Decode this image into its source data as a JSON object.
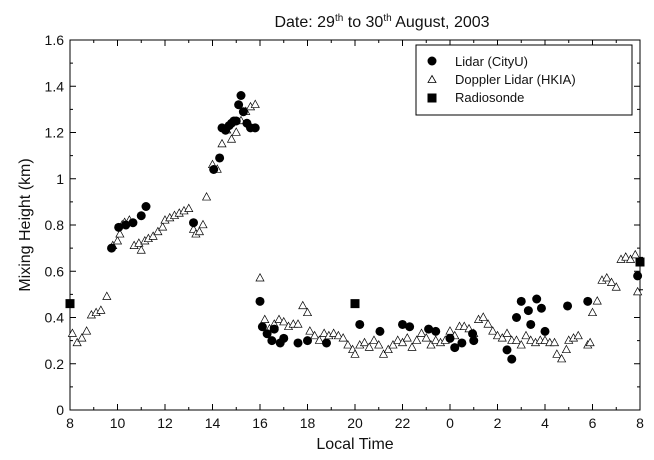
{
  "chart_data": {
    "type": "scatter",
    "title_parts": [
      "Date: 29",
      "th",
      " to 30",
      "th",
      " August, 2003"
    ],
    "xlabel": "Local Time",
    "ylabel": "Mixing Height (km)",
    "x_ticks": [
      "8",
      "10",
      "12",
      "14",
      "16",
      "18",
      "20",
      "22",
      "0",
      "2",
      "4",
      "6",
      "8"
    ],
    "y_ticks": [
      "0",
      "0.2",
      "0.4",
      "0.6",
      "0.8",
      "1",
      "1.2",
      "1.4",
      "1.6"
    ],
    "xlim": [
      8,
      32
    ],
    "ylim": [
      0,
      1.6
    ],
    "grid": false,
    "legend_position": "top-right",
    "x_note": "x values are elapsed hours on the clock starting at 08:00 on 29 August (values above 24 are the next day, ticks shown as 0, 2, 4, 6, 8)",
    "series": [
      {
        "name": "Lidar (CityU)",
        "marker": "filled-circle",
        "points": [
          [
            9.75,
            0.7
          ],
          [
            10.05,
            0.79
          ],
          [
            10.35,
            0.8
          ],
          [
            10.65,
            0.81
          ],
          [
            11.0,
            0.84
          ],
          [
            11.2,
            0.88
          ],
          [
            13.2,
            0.81
          ],
          [
            14.05,
            1.04
          ],
          [
            14.3,
            1.09
          ],
          [
            14.4,
            1.22
          ],
          [
            14.55,
            1.21
          ],
          [
            14.7,
            1.23
          ],
          [
            14.8,
            1.24
          ],
          [
            14.9,
            1.25
          ],
          [
            15.0,
            1.25
          ],
          [
            15.1,
            1.32
          ],
          [
            15.2,
            1.36
          ],
          [
            15.3,
            1.29
          ],
          [
            15.45,
            1.24
          ],
          [
            15.6,
            1.22
          ],
          [
            15.8,
            1.22
          ],
          [
            16.0,
            0.47
          ],
          [
            16.1,
            0.36
          ],
          [
            16.3,
            0.33
          ],
          [
            16.5,
            0.3
          ],
          [
            16.6,
            0.35
          ],
          [
            16.85,
            0.29
          ],
          [
            17.0,
            0.31
          ],
          [
            17.6,
            0.29
          ],
          [
            18.0,
            0.3
          ],
          [
            18.8,
            0.29
          ],
          [
            20.2,
            0.37
          ],
          [
            21.05,
            0.34
          ],
          [
            22.0,
            0.37
          ],
          [
            22.3,
            0.36
          ],
          [
            23.1,
            0.35
          ],
          [
            23.4,
            0.34
          ],
          [
            24.0,
            0.31
          ],
          [
            24.2,
            0.27
          ],
          [
            24.5,
            0.29
          ],
          [
            24.95,
            0.33
          ],
          [
            25.0,
            0.3
          ],
          [
            26.4,
            0.26
          ],
          [
            26.6,
            0.22
          ],
          [
            26.8,
            0.4
          ],
          [
            27.0,
            0.47
          ],
          [
            27.3,
            0.43
          ],
          [
            27.4,
            0.37
          ],
          [
            27.65,
            0.48
          ],
          [
            27.85,
            0.44
          ],
          [
            28.0,
            0.34
          ],
          [
            28.95,
            0.45
          ],
          [
            29.8,
            0.47
          ],
          [
            31.9,
            0.58
          ]
        ]
      },
      {
        "name": "Doppler Lidar (HKIA)",
        "marker": "open-triangle",
        "points": [
          [
            8.1,
            0.33
          ],
          [
            8.3,
            0.29
          ],
          [
            8.5,
            0.31
          ],
          [
            8.7,
            0.34
          ],
          [
            8.9,
            0.41
          ],
          [
            9.1,
            0.42
          ],
          [
            9.3,
            0.43
          ],
          [
            9.55,
            0.49
          ],
          [
            9.8,
            0.71
          ],
          [
            10.0,
            0.73
          ],
          [
            10.1,
            0.76
          ],
          [
            10.2,
            0.8
          ],
          [
            10.3,
            0.81
          ],
          [
            10.5,
            0.82
          ],
          [
            10.7,
            0.71
          ],
          [
            10.9,
            0.72
          ],
          [
            11.0,
            0.69
          ],
          [
            11.15,
            0.73
          ],
          [
            11.3,
            0.74
          ],
          [
            11.5,
            0.75
          ],
          [
            11.7,
            0.77
          ],
          [
            11.9,
            0.79
          ],
          [
            12.0,
            0.82
          ],
          [
            12.2,
            0.83
          ],
          [
            12.4,
            0.84
          ],
          [
            12.6,
            0.85
          ],
          [
            12.8,
            0.86
          ],
          [
            13.0,
            0.87
          ],
          [
            13.2,
            0.78
          ],
          [
            13.3,
            0.76
          ],
          [
            13.45,
            0.77
          ],
          [
            13.6,
            0.8
          ],
          [
            13.75,
            0.92
          ],
          [
            14.0,
            1.06
          ],
          [
            14.2,
            1.04
          ],
          [
            14.4,
            1.15
          ],
          [
            14.6,
            1.21
          ],
          [
            14.8,
            1.17
          ],
          [
            15.0,
            1.2
          ],
          [
            15.2,
            1.25
          ],
          [
            15.4,
            1.29
          ],
          [
            15.6,
            1.31
          ],
          [
            15.8,
            1.32
          ],
          [
            16.0,
            0.57
          ],
          [
            16.2,
            0.39
          ],
          [
            16.4,
            0.35
          ],
          [
            16.6,
            0.37
          ],
          [
            16.8,
            0.39
          ],
          [
            17.0,
            0.38
          ],
          [
            17.2,
            0.36
          ],
          [
            17.4,
            0.37
          ],
          [
            17.6,
            0.37
          ],
          [
            17.8,
            0.45
          ],
          [
            18.0,
            0.42
          ],
          [
            18.1,
            0.34
          ],
          [
            18.3,
            0.32
          ],
          [
            18.5,
            0.3
          ],
          [
            18.7,
            0.33
          ],
          [
            18.9,
            0.32
          ],
          [
            19.1,
            0.33
          ],
          [
            19.3,
            0.32
          ],
          [
            19.5,
            0.31
          ],
          [
            19.7,
            0.28
          ],
          [
            19.9,
            0.26
          ],
          [
            20.0,
            0.24
          ],
          [
            20.2,
            0.28
          ],
          [
            20.4,
            0.29
          ],
          [
            20.6,
            0.27
          ],
          [
            20.8,
            0.3
          ],
          [
            21.0,
            0.28
          ],
          [
            21.2,
            0.24
          ],
          [
            21.4,
            0.26
          ],
          [
            21.6,
            0.28
          ],
          [
            21.8,
            0.3
          ],
          [
            22.0,
            0.29
          ],
          [
            22.2,
            0.31
          ],
          [
            22.4,
            0.27
          ],
          [
            22.6,
            0.3
          ],
          [
            22.8,
            0.33
          ],
          [
            23.0,
            0.31
          ],
          [
            23.2,
            0.28
          ],
          [
            23.4,
            0.3
          ],
          [
            23.6,
            0.29
          ],
          [
            23.8,
            0.3
          ],
          [
            24.0,
            0.34
          ],
          [
            24.2,
            0.32
          ],
          [
            24.4,
            0.36
          ],
          [
            24.6,
            0.36
          ],
          [
            24.8,
            0.35
          ],
          [
            25.0,
            0.33
          ],
          [
            25.2,
            0.39
          ],
          [
            25.4,
            0.4
          ],
          [
            25.6,
            0.37
          ],
          [
            25.8,
            0.34
          ],
          [
            26.0,
            0.32
          ],
          [
            26.2,
            0.31
          ],
          [
            26.4,
            0.33
          ],
          [
            26.6,
            0.3
          ],
          [
            26.8,
            0.3
          ],
          [
            27.0,
            0.28
          ],
          [
            27.2,
            0.32
          ],
          [
            27.4,
            0.3
          ],
          [
            27.6,
            0.29
          ],
          [
            27.8,
            0.3
          ],
          [
            28.0,
            0.3
          ],
          [
            28.2,
            0.29
          ],
          [
            28.4,
            0.29
          ],
          [
            28.5,
            0.24
          ],
          [
            28.7,
            0.22
          ],
          [
            28.9,
            0.26
          ],
          [
            29.0,
            0.3
          ],
          [
            29.2,
            0.31
          ],
          [
            29.4,
            0.32
          ],
          [
            29.8,
            0.28
          ],
          [
            29.9,
            0.29
          ],
          [
            30.0,
            0.42
          ],
          [
            30.2,
            0.47
          ],
          [
            30.4,
            0.56
          ],
          [
            30.6,
            0.57
          ],
          [
            30.8,
            0.55
          ],
          [
            31.0,
            0.53
          ],
          [
            31.2,
            0.65
          ],
          [
            31.4,
            0.66
          ],
          [
            31.6,
            0.65
          ],
          [
            31.8,
            0.67
          ],
          [
            31.9,
            0.51
          ]
        ]
      },
      {
        "name": "Radiosonde",
        "marker": "filled-square",
        "points": [
          [
            8.0,
            0.46
          ],
          [
            20.0,
            0.46
          ],
          [
            32.0,
            0.64
          ]
        ]
      }
    ],
    "error_bar": {
      "x": 32.0,
      "low": 0.52,
      "high": 0.66
    }
  }
}
